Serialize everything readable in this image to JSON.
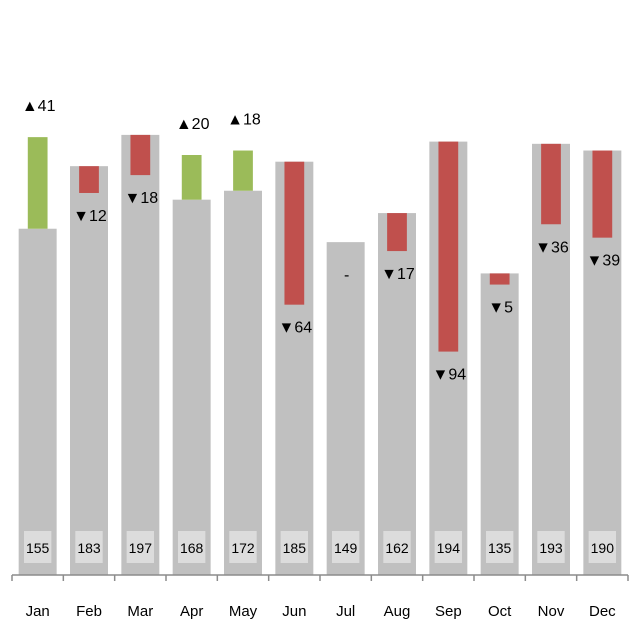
{
  "chart_data": {
    "type": "bar",
    "categories": [
      "Jan",
      "Feb",
      "Mar",
      "Apr",
      "May",
      "Jun",
      "Jul",
      "Aug",
      "Sep",
      "Oct",
      "Nov",
      "Dec"
    ],
    "series": [
      {
        "values": [
          155,
          183,
          197,
          168,
          172,
          185,
          149,
          162,
          194,
          135,
          193,
          190
        ]
      },
      {
        "values": [
          196,
          171,
          179,
          188,
          190,
          121,
          149,
          145,
          100,
          130,
          157,
          151
        ]
      }
    ],
    "variance_labels": [
      "▲41",
      "▼12",
      "▼18",
      "▲20",
      "▲18",
      "▼64",
      "-",
      "▼17",
      "▼94",
      "▼5",
      "▼36",
      "▼39"
    ],
    "title": "",
    "xlabel": "",
    "ylabel": "",
    "ylim": [
      0,
      235
    ],
    "grid": false,
    "legend": "none",
    "colors": {
      "base": "#c0c0c0",
      "increase": "#9bbb59",
      "decrease": "#c0504d",
      "base_label_box": "#dcdcdc",
      "axis": "#8c8c8c"
    }
  }
}
